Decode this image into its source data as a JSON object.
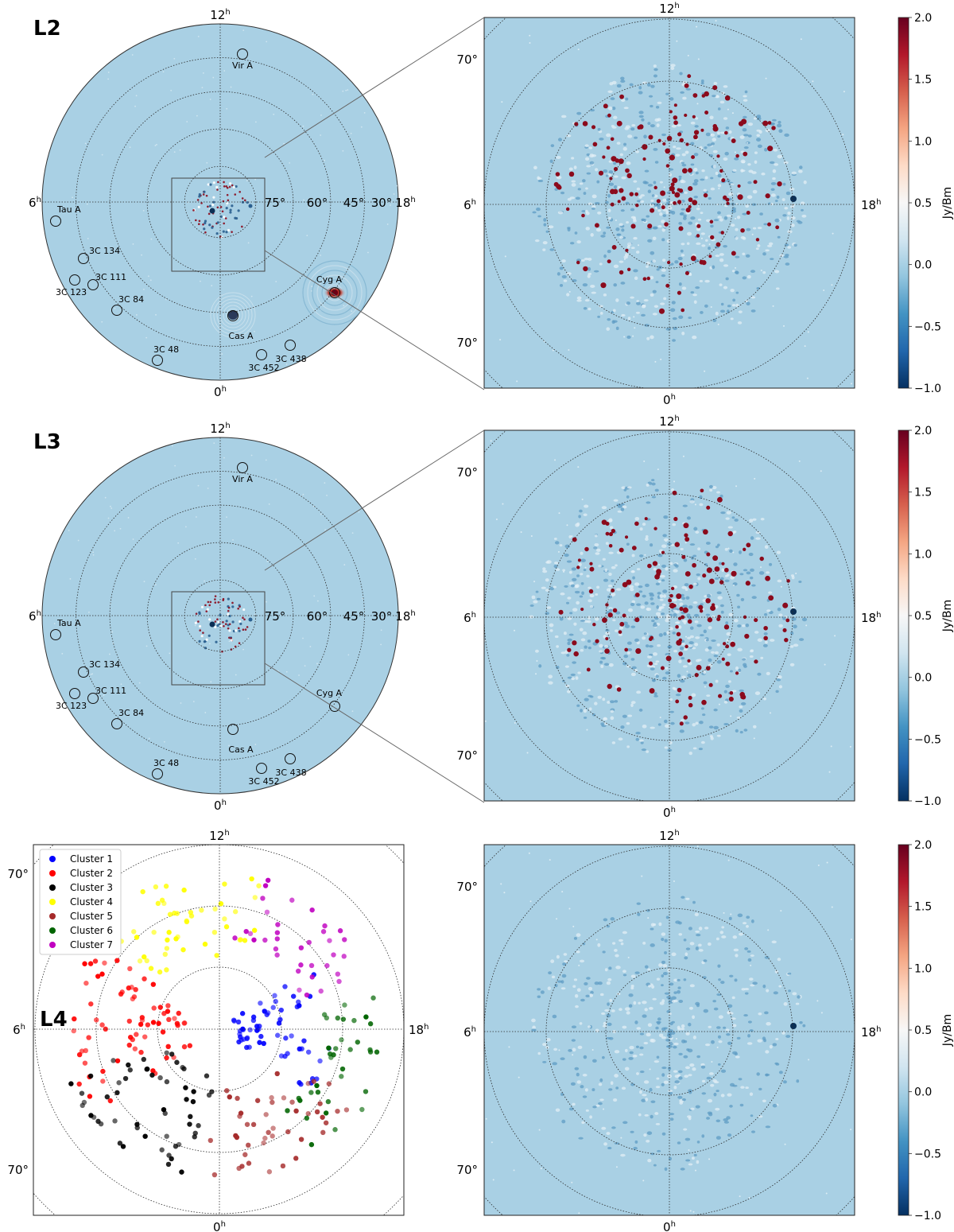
{
  "colors": {
    "sky": "#a9d0e4",
    "hot": "#8b0a1c",
    "ring": "#2b2b2b",
    "cold": "#2a5f8f",
    "colormap": [
      "#053061",
      "#2166ac",
      "#4393c3",
      "#92c5de",
      "#d1e5f0",
      "#f7f7f7",
      "#fddbc7",
      "#f4a582",
      "#d6604d",
      "#b2182b",
      "#67001f"
    ]
  },
  "panels": {
    "L2": "L2",
    "L3": "L3",
    "L4": "L4"
  },
  "allsky": {
    "ra_top": "12",
    "ra_bottom": "0",
    "ra_left": "6",
    "ra_right": "18",
    "ra_unit": "h",
    "dec_labels": [
      "75°",
      "60°",
      "45°",
      "30°"
    ],
    "sources": [
      {
        "name": "Vir A"
      },
      {
        "name": "Tau A"
      },
      {
        "name": "3C 134"
      },
      {
        "name": "3C 111"
      },
      {
        "name": "3C 123"
      },
      {
        "name": "3C 84"
      },
      {
        "name": "Cyg A"
      },
      {
        "name": "Cas A"
      },
      {
        "name": "3C 48"
      },
      {
        "name": "3C 438"
      },
      {
        "name": "3C 452"
      }
    ]
  },
  "zoom": {
    "ra_top": "12",
    "ra_bottom": "0",
    "ra_left": "6",
    "ra_right": "18",
    "ra_unit": "h",
    "dec_label": "70°"
  },
  "colorbar": {
    "label": "Jy/Bm",
    "ticks": [
      "2.0",
      "1.5",
      "1.0",
      "0.5",
      "0.0",
      "−0.5",
      "−1.0"
    ],
    "tick_values": [
      2.0,
      1.5,
      1.0,
      0.5,
      0.0,
      -0.5,
      -1.0
    ],
    "vmin": -1.0,
    "vmax": 2.0
  },
  "chart_data": {
    "type": "scatter",
    "legend_position": "top-left",
    "series": [
      {
        "name": "Cluster 1",
        "color": "#0000ff"
      },
      {
        "name": "Cluster 2",
        "color": "#ff0000"
      },
      {
        "name": "Cluster 3",
        "color": "#000000"
      },
      {
        "name": "Cluster 4",
        "color": "#ffff00"
      },
      {
        "name": "Cluster 5",
        "color": "#a52a2a"
      },
      {
        "name": "Cluster 6",
        "color": "#006400"
      },
      {
        "name": "Cluster 7",
        "color": "#c000c0"
      }
    ]
  }
}
